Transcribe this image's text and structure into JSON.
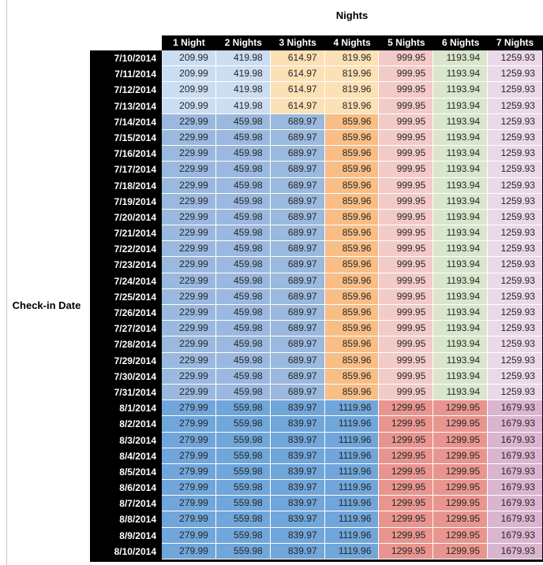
{
  "chart_data": {
    "type": "table",
    "title": "Nights",
    "row_axis_label": "Check-in Date",
    "column_headers": [
      "1 Night",
      "2 Nights",
      "3 Nights",
      "4 Nights",
      "5 Nights",
      "6 Nights",
      "7 Nights"
    ],
    "colors": {
      "lightBlue": "#CBDDF1",
      "lightOrange": "#FCE0B6",
      "medBlue": "#9BB9DE",
      "medOrange": "#F8BE86",
      "lightRed": "#F2CBC9",
      "lightGreen": "#D9E6CC",
      "lightPurple": "#EBD9E9",
      "darkBlue": "#70A6DA",
      "salmon": "#E9958F",
      "medPurple": "#DBB5D0",
      "header_bg": "#000000",
      "header_text": "#ffffff",
      "value_text": "#262626"
    },
    "bands": {
      "early": [
        "lightBlue",
        "lightBlue",
        "lightOrange",
        "lightOrange",
        "lightRed",
        "lightGreen",
        "lightPurple"
      ],
      "mid": [
        "medBlue",
        "medBlue",
        "medBlue",
        "medOrange",
        "lightRed",
        "lightGreen",
        "lightPurple"
      ],
      "aug": [
        "darkBlue",
        "darkBlue",
        "darkBlue",
        "darkBlue",
        "salmon",
        "salmon",
        "medPurple"
      ]
    },
    "rows": [
      {
        "date": "7/10/2014",
        "band": "early",
        "values": [
          "209.99",
          "419.98",
          "614.97",
          "819.96",
          "999.95",
          "1193.94",
          "1259.93"
        ]
      },
      {
        "date": "7/11/2014",
        "band": "early",
        "values": [
          "209.99",
          "419.98",
          "614.97",
          "819.96",
          "999.95",
          "1193.94",
          "1259.93"
        ]
      },
      {
        "date": "7/12/2014",
        "band": "early",
        "values": [
          "209.99",
          "419.98",
          "614.97",
          "819.96",
          "999.95",
          "1193.94",
          "1259.93"
        ]
      },
      {
        "date": "7/13/2014",
        "band": "early",
        "values": [
          "209.99",
          "419.98",
          "614.97",
          "819.96",
          "999.95",
          "1193.94",
          "1259.93"
        ]
      },
      {
        "date": "7/14/2014",
        "band": "mid",
        "values": [
          "229.99",
          "459.98",
          "689.97",
          "859.96",
          "999.95",
          "1193.94",
          "1259.93"
        ]
      },
      {
        "date": "7/15/2014",
        "band": "mid",
        "values": [
          "229.99",
          "459.98",
          "689.97",
          "859.96",
          "999.95",
          "1193.94",
          "1259.93"
        ]
      },
      {
        "date": "7/16/2014",
        "band": "mid",
        "values": [
          "229.99",
          "459.98",
          "689.97",
          "859.96",
          "999.95",
          "1193.94",
          "1259.93"
        ]
      },
      {
        "date": "7/17/2014",
        "band": "mid",
        "values": [
          "229.99",
          "459.98",
          "689.97",
          "859.96",
          "999.95",
          "1193.94",
          "1259.93"
        ]
      },
      {
        "date": "7/18/2014",
        "band": "mid",
        "values": [
          "229.99",
          "459.98",
          "689.97",
          "859.96",
          "999.95",
          "1193.94",
          "1259.93"
        ]
      },
      {
        "date": "7/19/2014",
        "band": "mid",
        "values": [
          "229.99",
          "459.98",
          "689.97",
          "859.96",
          "999.95",
          "1193.94",
          "1259.93"
        ]
      },
      {
        "date": "7/20/2014",
        "band": "mid",
        "values": [
          "229.99",
          "459.98",
          "689.97",
          "859.96",
          "999.95",
          "1193.94",
          "1259.93"
        ]
      },
      {
        "date": "7/21/2014",
        "band": "mid",
        "values": [
          "229.99",
          "459.98",
          "689.97",
          "859.96",
          "999.95",
          "1193.94",
          "1259.93"
        ]
      },
      {
        "date": "7/22/2014",
        "band": "mid",
        "values": [
          "229.99",
          "459.98",
          "689.97",
          "859.96",
          "999.95",
          "1193.94",
          "1259.93"
        ]
      },
      {
        "date": "7/23/2014",
        "band": "mid",
        "values": [
          "229.99",
          "459.98",
          "689.97",
          "859.96",
          "999.95",
          "1193.94",
          "1259.93"
        ]
      },
      {
        "date": "7/24/2014",
        "band": "mid",
        "values": [
          "229.99",
          "459.98",
          "689.97",
          "859.96",
          "999.95",
          "1193.94",
          "1259.93"
        ]
      },
      {
        "date": "7/25/2014",
        "band": "mid",
        "values": [
          "229.99",
          "459.98",
          "689.97",
          "859.96",
          "999.95",
          "1193.94",
          "1259.93"
        ]
      },
      {
        "date": "7/26/2014",
        "band": "mid",
        "values": [
          "229.99",
          "459.98",
          "689.97",
          "859.96",
          "999.95",
          "1193.94",
          "1259.93"
        ]
      },
      {
        "date": "7/27/2014",
        "band": "mid",
        "values": [
          "229.99",
          "459.98",
          "689.97",
          "859.96",
          "999.95",
          "1193.94",
          "1259.93"
        ]
      },
      {
        "date": "7/28/2014",
        "band": "mid",
        "values": [
          "229.99",
          "459.98",
          "689.97",
          "859.96",
          "999.95",
          "1193.94",
          "1259.93"
        ]
      },
      {
        "date": "7/29/2014",
        "band": "mid",
        "values": [
          "229.99",
          "459.98",
          "689.97",
          "859.96",
          "999.95",
          "1193.94",
          "1259.93"
        ]
      },
      {
        "date": "7/30/2014",
        "band": "mid",
        "values": [
          "229.99",
          "459.98",
          "689.97",
          "859.96",
          "999.95",
          "1193.94",
          "1259.93"
        ]
      },
      {
        "date": "7/31/2014",
        "band": "mid",
        "values": [
          "229.99",
          "459.98",
          "689.97",
          "859.96",
          "999.95",
          "1193.94",
          "1259.93"
        ]
      },
      {
        "date": "8/1/2014",
        "band": "aug",
        "values": [
          "279.99",
          "559.98",
          "839.97",
          "1119.96",
          "1299.95",
          "1299.95",
          "1679.93"
        ]
      },
      {
        "date": "8/2/2014",
        "band": "aug",
        "values": [
          "279.99",
          "559.98",
          "839.97",
          "1119.96",
          "1299.95",
          "1299.95",
          "1679.93"
        ]
      },
      {
        "date": "8/3/2014",
        "band": "aug",
        "values": [
          "279.99",
          "559.98",
          "839.97",
          "1119.96",
          "1299.95",
          "1299.95",
          "1679.93"
        ]
      },
      {
        "date": "8/4/2014",
        "band": "aug",
        "values": [
          "279.99",
          "559.98",
          "839.97",
          "1119.96",
          "1299.95",
          "1299.95",
          "1679.93"
        ]
      },
      {
        "date": "8/5/2014",
        "band": "aug",
        "values": [
          "279.99",
          "559.98",
          "839.97",
          "1119.96",
          "1299.95",
          "1299.95",
          "1679.93"
        ]
      },
      {
        "date": "8/6/2014",
        "band": "aug",
        "values": [
          "279.99",
          "559.98",
          "839.97",
          "1119.96",
          "1299.95",
          "1299.95",
          "1679.93"
        ]
      },
      {
        "date": "8/7/2014",
        "band": "aug",
        "values": [
          "279.99",
          "559.98",
          "839.97",
          "1119.96",
          "1299.95",
          "1299.95",
          "1679.93"
        ]
      },
      {
        "date": "8/8/2014",
        "band": "aug",
        "values": [
          "279.99",
          "559.98",
          "839.97",
          "1119.96",
          "1299.95",
          "1299.95",
          "1679.93"
        ]
      },
      {
        "date": "8/9/2014",
        "band": "aug",
        "values": [
          "279.99",
          "559.98",
          "839.97",
          "1119.96",
          "1299.95",
          "1299.95",
          "1679.93"
        ]
      },
      {
        "date": "8/10/2014",
        "band": "aug",
        "values": [
          "279.99",
          "559.98",
          "839.97",
          "1119.96",
          "1299.95",
          "1299.95",
          "1679.93"
        ]
      }
    ]
  }
}
